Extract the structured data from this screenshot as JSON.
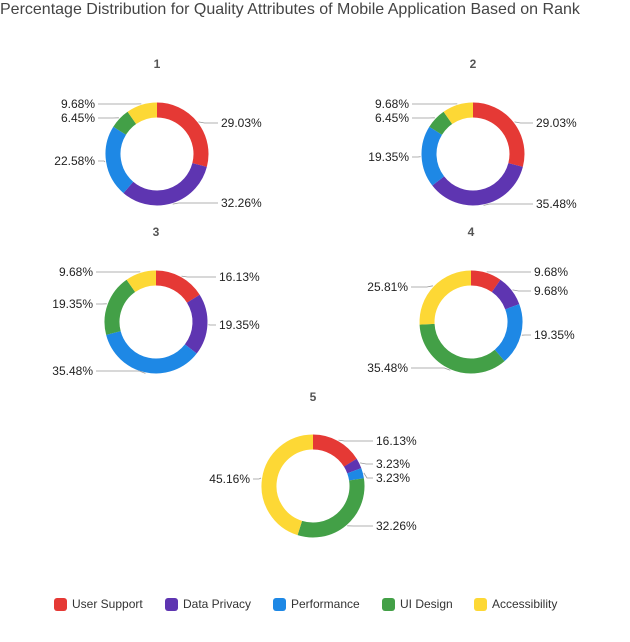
{
  "title": "Percentage Distribution for Quality Attributes of Mobile Application Based on Rank",
  "chart_data": {
    "type": "pie",
    "variant": "donut",
    "title": "Percentage Distribution for Quality Attributes of Mobile Application Based on Rank",
    "legend_position": "bottom",
    "series_names": [
      "User Support",
      "Data Privacy",
      "Performance",
      "UI Design",
      "Accessibility"
    ],
    "colors": [
      "#e53935",
      "#5e35b1",
      "#1e88e5",
      "#43a047",
      "#fdd835"
    ],
    "charts": [
      {
        "label": "1",
        "values": [
          29.03,
          32.26,
          22.58,
          6.45,
          9.68
        ],
        "value_labels": [
          "29.03%",
          "32.26%",
          "22.58%",
          "6.45%",
          "9.68%"
        ]
      },
      {
        "label": "2",
        "values": [
          29.03,
          35.48,
          19.35,
          6.45,
          9.68
        ],
        "value_labels": [
          "29.03%",
          "35.48%",
          "19.35%",
          "6.45%",
          "9.68%"
        ]
      },
      {
        "label": "3",
        "values": [
          16.13,
          19.35,
          35.48,
          19.35,
          9.68
        ],
        "value_labels": [
          "16.13%",
          "19.35%",
          "35.48%",
          "19.35%",
          "9.68%"
        ]
      },
      {
        "label": "4",
        "values": [
          9.68,
          9.68,
          19.35,
          35.48,
          25.81
        ],
        "value_labels": [
          "9.68%",
          "9.68%",
          "19.35%",
          "35.48%",
          "25.81%"
        ]
      },
      {
        "label": "5",
        "values": [
          16.13,
          3.23,
          3.23,
          32.26,
          45.16
        ],
        "value_labels": [
          "16.13%",
          "3.23%",
          "3.23%",
          "32.26%",
          "45.16%"
        ]
      }
    ]
  }
}
